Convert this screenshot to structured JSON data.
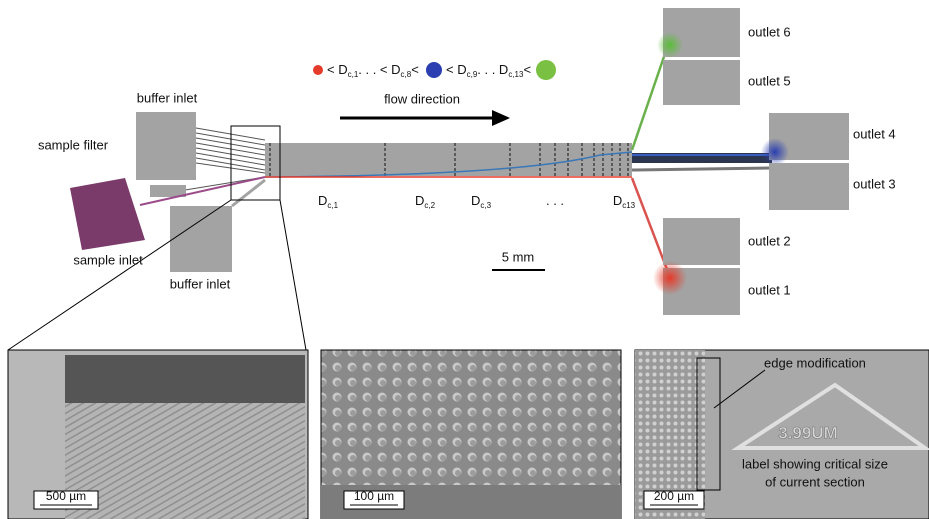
{
  "legend": {
    "parts": [
      "< D",
      "c,1",
      ". . . < D",
      "c,8",
      "<",
      "< D",
      "c,9",
      ". . . D",
      "c,13",
      "<"
    ]
  },
  "flow_label": "flow direction",
  "labels": {
    "buffer_inlet_top": "buffer inlet",
    "sample_filter": "sample filter",
    "sample_inlet": "sample inlet",
    "buffer_inlet_bottom": "buffer inlet",
    "scale": "5 mm"
  },
  "sections": [
    {
      "main": "D",
      "sub": "c,1"
    },
    {
      "main": "D",
      "sub": "c,2"
    },
    {
      "main": "D",
      "sub": "c,3"
    },
    {
      "main": ". . ."
    },
    {
      "main": "D",
      "sub": "c13"
    }
  ],
  "outlets": [
    "outlet 6",
    "outlet 5",
    "outlet 4",
    "outlet 3",
    "outlet 2",
    "outlet 1"
  ],
  "panels": [
    {
      "scale": "500 µm"
    },
    {
      "scale": "100 µm"
    },
    {
      "scale": "200 µm",
      "annotation": "edge modification",
      "label_lines": [
        "label showing critical size",
        "of current section"
      ],
      "embossed": "3.99UM"
    }
  ]
}
